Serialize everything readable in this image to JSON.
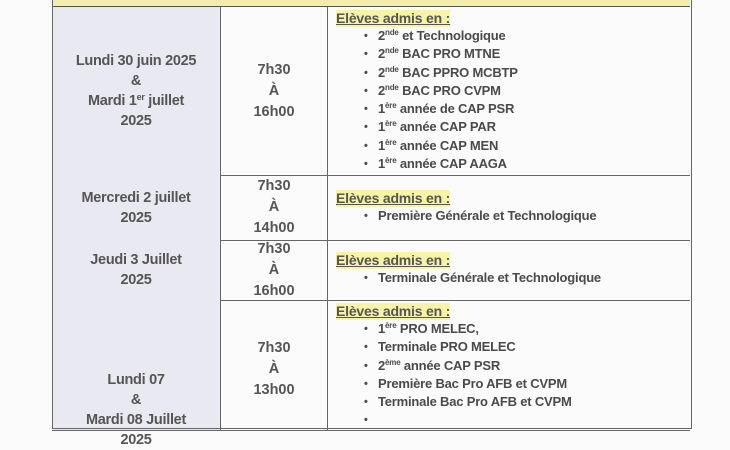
{
  "rows": [
    {
      "date": [
        {
          "t": "Lundi 30 juin 2025"
        },
        {
          "t": "&"
        },
        {
          "t": "Mardi 1",
          "sup": "er",
          "rest": " juillet"
        },
        {
          "t": "2025"
        }
      ],
      "time": [
        "7h30",
        "À",
        "16h00"
      ],
      "heading": "Elèves admis en :",
      "items": [
        {
          "t": "2",
          "sup": "nde",
          "rest": " et Technologique"
        },
        {
          "t": "2",
          "sup": "nde",
          "rest": " BAC PRO MTNE"
        },
        {
          "t": "2",
          "sup": "nde",
          "rest": " BAC PPRO MCBTP"
        },
        {
          "t": "2",
          "sup": "nde",
          "rest": " BAC PRO CVPM"
        },
        {
          "t": "1",
          "sup": "ère",
          "rest": " année de CAP PSR"
        },
        {
          "t": "1",
          "sup": "ère",
          "rest": " année CAP PAR"
        },
        {
          "t": "1",
          "sup": "ère",
          "rest": " année CAP MEN"
        },
        {
          "t": "1",
          "sup": "ère",
          "rest": " année CAP AAGA"
        }
      ]
    },
    {
      "date": [
        {
          "t": "Mercredi 2 juillet"
        },
        {
          "t": "2025"
        }
      ],
      "time": [
        "7h30",
        "À",
        "14h00"
      ],
      "heading": "Elèves admis en :",
      "items": [
        {
          "t": "Première Générale et Technologique"
        }
      ]
    },
    {
      "date": [
        {
          "t": "Jeudi 3 Juillet"
        },
        {
          "t": "2025"
        }
      ],
      "time": [
        "7h30",
        "À",
        "16h00"
      ],
      "heading": "Elèves admis en :",
      "items": [
        {
          "t": "Terminale Générale et Technologique"
        }
      ]
    },
    {
      "date": [
        {
          "t": "Lundi 07"
        },
        {
          "t": "&"
        },
        {
          "t": "Mardi 08 Juillet"
        },
        {
          "t": "2025"
        }
      ],
      "time": [
        "7h30",
        "À",
        "13h00"
      ],
      "heading": "Elèves admis en :",
      "items": [
        {
          "t": "1",
          "sup": "ère",
          "rest": " PRO MELEC,"
        },
        {
          "t": "Terminale PRO MELEC"
        },
        {
          "t": "2",
          "sup": "ème",
          "rest": " année CAP PSR"
        },
        {
          "t": "Première Bac Pro AFB et CVPM"
        },
        {
          "t": "Terminale Bac Pro AFB et CVPM"
        },
        {
          "t": ""
        }
      ]
    }
  ]
}
